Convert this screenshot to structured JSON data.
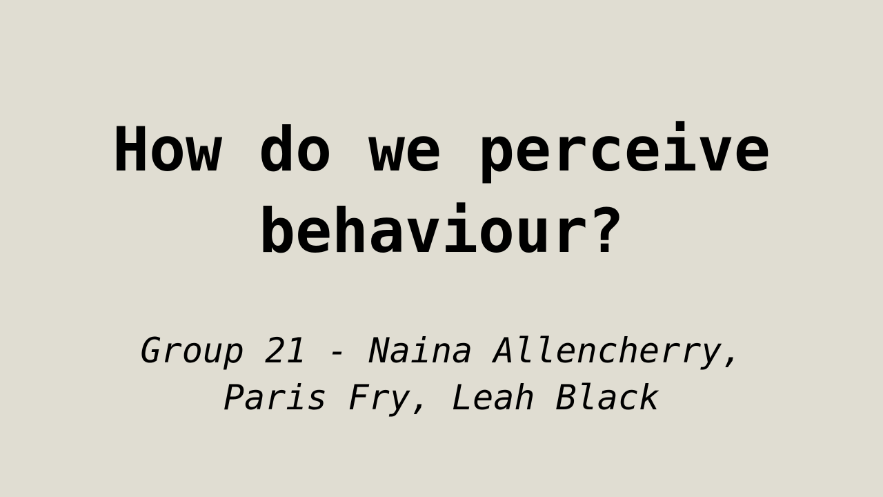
{
  "slide": {
    "title_lines": [
      "How do we perceive",
      "behaviour?"
    ],
    "subtitle_lines": [
      "Group 21 - Naina Allencherry,",
      "Paris Fry, Leah Black"
    ],
    "background_color": "#e0ddd2",
    "text_color": "#000000"
  }
}
